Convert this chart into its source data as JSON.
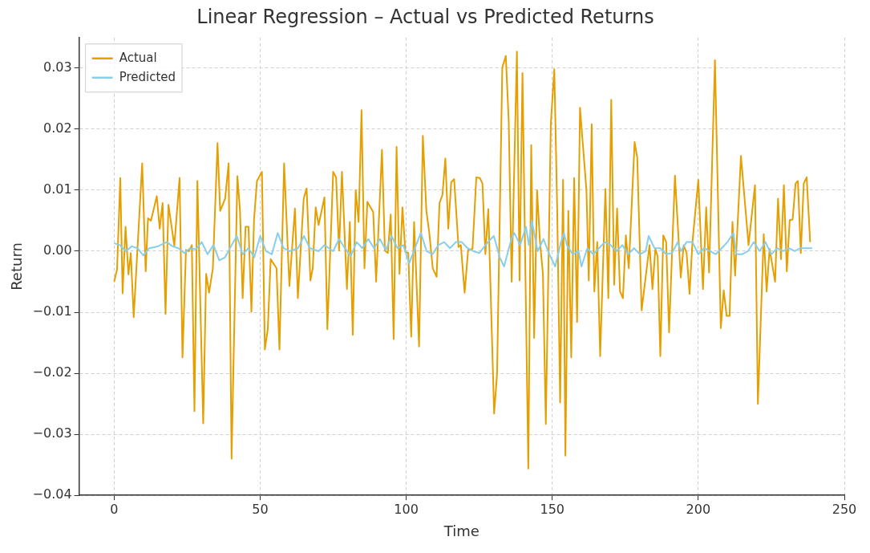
{
  "chart_data": {
    "type": "line",
    "title": "Linear Regression – Actual vs Predicted Returns",
    "xlabel": "Time",
    "ylabel": "Return",
    "xlim": [
      -12,
      250
    ],
    "xticks": [
      0,
      50,
      100,
      150,
      200,
      250
    ],
    "ylim": [
      -0.04,
      0.035
    ],
    "yticks": [
      {
        "value": -0.04,
        "label": "−0.04"
      },
      {
        "value": -0.03,
        "label": "−0.03"
      },
      {
        "value": -0.02,
        "label": "−0.02"
      },
      {
        "value": -0.01,
        "label": "−0.01"
      },
      {
        "value": 0,
        "label": "0.00"
      },
      {
        "value": 0.01,
        "label": "0.01"
      },
      {
        "value": 0.02,
        "label": "0.02"
      },
      {
        "value": 0.03,
        "label": "0.03"
      }
    ],
    "grid": true,
    "legend": "top left",
    "marker": "none",
    "line_style": "solid",
    "series": [
      {
        "name": "Actual",
        "color": "#e69f00",
        "x": [
          0,
          1,
          2.1,
          2.9,
          3.9,
          4.9,
          5.7,
          6.7,
          9.6,
          10.8,
          11.6,
          12.6,
          14.6,
          15.6,
          16.6,
          17.6,
          18.6,
          20.6,
          22.4,
          23.4,
          24.6,
          25.6,
          26.6,
          27.5,
          28.5,
          30.5,
          31.5,
          32.5,
          33.8,
          35.4,
          36.3,
          38,
          39.2,
          40.2,
          42.2,
          43.1,
          44,
          45,
          46,
          47,
          47.9,
          48.9,
          50.6,
          51.6,
          52.6,
          53.6,
          55.6,
          56.6,
          58.2,
          60,
          61.9,
          62.9,
          64.9,
          65.9,
          67.2,
          68,
          69,
          70,
          72,
          73,
          75,
          76,
          77,
          78,
          79.7,
          80.7,
          81.7,
          82.7,
          83.7,
          84.7,
          85.7,
          86.7,
          88.7,
          89.7,
          91.7,
          92.7,
          93.7,
          94.7,
          95.7,
          96.7,
          97.7,
          98.7,
          99.7,
          100.7,
          101.7,
          102.7,
          104.4,
          105.7,
          106.9,
          107.9,
          109.1,
          110.4,
          111.4,
          112.4,
          113.4,
          114.4,
          115.4,
          116.4,
          117.9,
          118.7,
          120,
          121.2,
          122.7,
          124,
          125.2,
          126.1,
          127.1,
          128.1,
          130.1,
          131.1,
          132.9,
          134.1,
          135.1,
          136.1,
          137.9,
          138.8,
          139.8,
          141.8,
          142.8,
          143.8,
          144.8,
          145.8,
          146.8,
          147.8,
          149.5,
          150.7,
          151.7,
          152.7,
          153.7,
          154.5,
          155.5,
          156.5,
          157.5,
          158.5,
          159.5,
          161.7,
          162.5,
          163.5,
          164.4,
          165.4,
          166.4,
          168.2,
          169.2,
          170.2,
          171.2,
          172.2,
          173.2,
          174.2,
          175.2,
          176.2,
          178.2,
          179.1,
          180.6,
          183.3,
          184.3,
          185.3,
          186.1,
          187,
          188,
          189,
          190,
          192,
          194,
          195,
          196,
          197,
          198,
          200,
          201.6,
          202.7,
          203.7,
          205.7,
          207.7,
          208.7,
          209.7,
          210.7,
          211.7,
          212.6,
          214.6,
          217.2,
          219.4,
          220.4,
          222.4,
          223.4,
          224.4,
          226.3,
          227.3,
          228.3,
          229.3,
          230.3,
          231.3,
          232.3,
          233.3,
          234.1,
          235.1,
          236.1,
          237.1,
          238.3
        ],
        "values": [
          -0.005,
          -0.003,
          0.012,
          -0.0069,
          0.004,
          -0.0038,
          -0.0003,
          -0.0108,
          0.0144,
          -0.0033,
          0.0054,
          0.005,
          0.009,
          0.0037,
          0.0079,
          -0.0103,
          0.0076,
          0.0009,
          0.012,
          -0.0174,
          0.0002,
          0,
          0.001,
          -0.0262,
          0.0115,
          -0.0282,
          -0.0037,
          -0.0068,
          -0.0028,
          0.0177,
          0.0066,
          0.0086,
          0.0144,
          -0.034,
          0.0123,
          0.0066,
          -0.0077,
          0.004,
          0.004,
          -0.0099,
          0.0052,
          0.0115,
          0.013,
          -0.0161,
          -0.0128,
          -0.0013,
          -0.0028,
          -0.0161,
          0.0144,
          -0.0057,
          0.007,
          -0.0077,
          0.0086,
          0.0103,
          -0.0048,
          -0.0028,
          0.0072,
          0.0043,
          0.0088,
          -0.0128,
          0.013,
          0.0121,
          0.0001,
          0.013,
          -0.0062,
          0.0048,
          -0.0137,
          0.01,
          0.0048,
          0.0231,
          -0.0028,
          0.0081,
          0.0064,
          -0.005,
          0.0166,
          0.0001,
          -0.0003,
          0.006,
          -0.0144,
          0.0171,
          -0.0037,
          0.0072,
          -0.0001,
          -0.0003,
          -0.014,
          0.0048,
          -0.0156,
          0.0189,
          0.0066,
          0.003,
          -0.0028,
          -0.0042,
          0.0079,
          0.0092,
          0.0152,
          0.0037,
          0.0113,
          0.0118,
          0.0007,
          0.001,
          -0.0068,
          0.0002,
          0.0004,
          0.0121,
          0.012,
          0.0111,
          -0.0005,
          0.0069,
          -0.0266,
          -0.0201,
          0.0301,
          0.032,
          0.0212,
          -0.005,
          0.0327,
          -0.0048,
          0.0292,
          -0.0356,
          0.0174,
          -0.0142,
          0.01,
          0.0015,
          -0.0037,
          -0.0283,
          0.0208,
          0.0298,
          0.0066,
          -0.0248,
          0.0117,
          -0.0335,
          0.0066,
          -0.0174,
          0.012,
          -0.0116,
          0.0235,
          0.01,
          -0.0048,
          0.0208,
          -0.0066,
          0.0015,
          -0.0172,
          0.0102,
          -0.0077,
          0.0248,
          -0.0055,
          0.007,
          -0.0066,
          -0.0077,
          0.0026,
          -0.0028,
          0.0179,
          0.0153,
          -0.0097,
          0.001,
          -0.0062,
          0.0004,
          -0.0009,
          -0.0172,
          0.0026,
          0.0015,
          -0.0133,
          0.0124,
          -0.0043,
          0.001,
          -0.0003,
          -0.007,
          0.0015,
          0.0117,
          -0.0062,
          0.0072,
          -0.0035,
          0.0313,
          -0.0126,
          -0.0064,
          -0.0106,
          -0.0106,
          0.0048,
          -0.004,
          0.0156,
          0.001,
          0.0108,
          -0.025,
          0.0028,
          -0.0066,
          0.0004,
          -0.005,
          0.0086,
          -0.0013,
          0.0108,
          -0.0033,
          0.0051,
          0.0052,
          0.0111,
          0.0115,
          -0.0003,
          0.0111,
          0.0121,
          0.0015
        ]
      },
      {
        "name": "Predicted",
        "color": "#87ceeb",
        "x": [
          0,
          2,
          4,
          6,
          8,
          10,
          12,
          15,
          18,
          20,
          22,
          24,
          26,
          28,
          30,
          32,
          34,
          36,
          38,
          40,
          42,
          44,
          46,
          48,
          50,
          52,
          54,
          56,
          58,
          60,
          63,
          65,
          67,
          70,
          72,
          75,
          77,
          79,
          81,
          83,
          85,
          87,
          89,
          91,
          93,
          95,
          97,
          99,
          101,
          103,
          105,
          107,
          109,
          111,
          113,
          115,
          117,
          119,
          121,
          123,
          125,
          128,
          130,
          132,
          133.5,
          136,
          137,
          139,
          141,
          142,
          143,
          145,
          147,
          149,
          151,
          153,
          154,
          155,
          157,
          159,
          160,
          162,
          164,
          166,
          168,
          170,
          172,
          174,
          176,
          178,
          180,
          182,
          183,
          185,
          187,
          189,
          191,
          193,
          194,
          196,
          198,
          200,
          202,
          204,
          206,
          208,
          210,
          212,
          213,
          215,
          217,
          219,
          221,
          223,
          225,
          227,
          229,
          231,
          233,
          235,
          237,
          239
        ],
        "values": [
          0.0013,
          0.001,
          0,
          0.0008,
          0.0005,
          -0.0007,
          0.0005,
          0.0008,
          0.0015,
          0.0008,
          0.0005,
          -0.0003,
          0.0005,
          0.0003,
          0.0015,
          -0.0005,
          0.001,
          -0.0015,
          -0.001,
          0.0008,
          0.0025,
          -0.0005,
          0.0005,
          -0.001,
          0.0025,
          0,
          -0.0005,
          0.003,
          0.0005,
          0,
          0.0005,
          0.0025,
          0.0005,
          0,
          0.001,
          0,
          0.002,
          0.0005,
          -0.0008,
          0.0015,
          0.0005,
          0.002,
          0.0005,
          0.002,
          0.0002,
          0.0025,
          0.0005,
          0.001,
          -0.002,
          0.0005,
          0.003,
          0,
          -0.0005,
          0.001,
          0.0015,
          0.0005,
          0.0015,
          0.0015,
          0.0005,
          0,
          -0.0003,
          0.0015,
          0.0025,
          -0.001,
          -0.0025,
          0.002,
          0.003,
          0.001,
          0.004,
          0.001,
          0.005,
          0,
          0.002,
          -0.0005,
          -0.0025,
          0.0015,
          0.003,
          0.001,
          -0.0005,
          0,
          -0.0025,
          0.0005,
          -0.0005,
          0.0005,
          0.0015,
          0.001,
          0,
          0.001,
          -0.0005,
          0.0005,
          -0.0005,
          0,
          0.0025,
          0.0005,
          0.0005,
          -0.0005,
          -0.0003,
          0.0015,
          0,
          0.0015,
          0.0015,
          -0.0005,
          0.0005,
          0,
          -0.0005,
          0.0005,
          0.0015,
          0.003,
          -0.0005,
          -0.0005,
          0,
          0.0015,
          0,
          0.0015,
          -0.0005,
          0.0005,
          0,
          0.0005,
          0,
          0.0005,
          0.0005,
          0.0005
        ]
      }
    ]
  }
}
